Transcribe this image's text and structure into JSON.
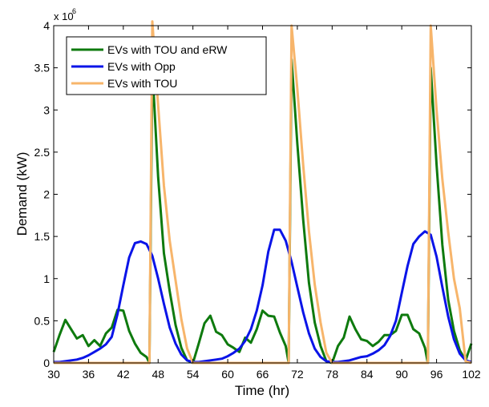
{
  "chart_data": {
    "type": "line",
    "xlabel": "Time (hr)",
    "ylabel": "Demand (kW)",
    "y_multiplier_label": "x 10",
    "y_multiplier_exponent": "6",
    "xlim": [
      30,
      102
    ],
    "ylim": [
      0,
      4000000
    ],
    "xticks": [
      30,
      36,
      42,
      48,
      54,
      60,
      66,
      72,
      78,
      84,
      90,
      96,
      102
    ],
    "yticks": [
      0,
      500000,
      1000000,
      1500000,
      2000000,
      2500000,
      3000000,
      3500000,
      4000000
    ],
    "ytick_labels": [
      "0",
      "0.5",
      "1",
      "1.5",
      "2",
      "2.5",
      "3",
      "3.5",
      "4"
    ],
    "grid": false,
    "legend_position": "top-left",
    "series": [
      {
        "name": "EVs with TOU and eRW",
        "color": "#0e7a0e",
        "x": [
          30,
          31,
          32,
          33,
          34,
          35,
          36,
          37,
          38,
          39,
          40,
          41,
          42,
          43,
          44,
          45,
          46,
          46.5,
          47,
          48,
          49,
          50,
          51,
          52,
          53,
          54,
          55,
          56,
          57,
          58,
          59,
          60,
          61,
          62,
          63,
          64,
          65,
          66,
          67,
          68,
          69,
          70,
          70.5,
          71,
          72,
          73,
          74,
          75,
          76,
          77,
          78,
          79,
          80,
          81,
          82,
          83,
          84,
          85,
          86,
          87,
          88,
          89,
          90,
          91,
          92,
          93,
          94,
          94.5,
          95,
          96,
          97,
          98,
          99,
          100,
          101,
          102
        ],
        "values": [
          130000,
          330000,
          510000,
          400000,
          290000,
          330000,
          200000,
          270000,
          200000,
          350000,
          420000,
          630000,
          620000,
          380000,
          230000,
          120000,
          70000,
          0,
          3500000,
          2200000,
          1300000,
          850000,
          450000,
          180000,
          30000,
          0,
          230000,
          470000,
          560000,
          370000,
          330000,
          220000,
          180000,
          130000,
          300000,
          240000,
          400000,
          620000,
          560000,
          550000,
          360000,
          200000,
          0,
          3600000,
          2600000,
          1700000,
          950000,
          480000,
          200000,
          20000,
          0,
          200000,
          300000,
          550000,
          400000,
          280000,
          260000,
          200000,
          250000,
          330000,
          330000,
          380000,
          570000,
          570000,
          400000,
          350000,
          180000,
          0,
          3500000,
          2350000,
          1400000,
          750000,
          380000,
          150000,
          30000,
          230000
        ]
      },
      {
        "name": "EVs with Opp",
        "color": "#0a14e8",
        "x": [
          30,
          31,
          32,
          33,
          34,
          35,
          36,
          37,
          38,
          39,
          40,
          41,
          42,
          43,
          44,
          45,
          46,
          47,
          48,
          49,
          50,
          51,
          52,
          53,
          54,
          55,
          56,
          57,
          58,
          59,
          60,
          61,
          62,
          63,
          64,
          65,
          66,
          67,
          68,
          69,
          70,
          71,
          72,
          73,
          74,
          75,
          76,
          77,
          78,
          79,
          80,
          81,
          82,
          83,
          84,
          85,
          86,
          87,
          88,
          89,
          90,
          91,
          92,
          93,
          94,
          95,
          96,
          97,
          98,
          99,
          100,
          101,
          102
        ],
        "values": [
          10000,
          10000,
          20000,
          30000,
          40000,
          60000,
          90000,
          130000,
          170000,
          220000,
          310000,
          580000,
          920000,
          1250000,
          1420000,
          1440000,
          1410000,
          1270000,
          1000000,
          700000,
          420000,
          230000,
          100000,
          30000,
          10000,
          10000,
          20000,
          30000,
          40000,
          50000,
          80000,
          120000,
          170000,
          260000,
          400000,
          620000,
          920000,
          1320000,
          1580000,
          1580000,
          1450000,
          1200000,
          900000,
          600000,
          350000,
          170000,
          70000,
          20000,
          10000,
          10000,
          20000,
          30000,
          50000,
          70000,
          80000,
          110000,
          150000,
          210000,
          320000,
          500000,
          830000,
          1150000,
          1410000,
          1500000,
          1560000,
          1520000,
          1260000,
          900000,
          550000,
          280000,
          110000,
          30000,
          10000
        ]
      },
      {
        "name": "EVs with TOU",
        "color": "#f7b56b",
        "x": [
          30,
          46,
          46.5,
          47,
          48,
          49,
          50,
          51,
          52,
          53,
          54,
          70,
          70.5,
          71,
          72,
          73,
          74,
          75,
          76,
          77,
          78,
          94,
          94.5,
          95,
          96,
          97,
          98,
          99,
          100,
          101,
          102
        ],
        "values": [
          0,
          0,
          0,
          4050000,
          3050000,
          2100000,
          1450000,
          980000,
          520000,
          170000,
          0,
          0,
          0,
          4000000,
          3250000,
          2350000,
          1560000,
          930000,
          480000,
          120000,
          0,
          0,
          0,
          4000000,
          3000000,
          2180000,
          1550000,
          1000000,
          650000,
          20000,
          0
        ]
      }
    ]
  }
}
